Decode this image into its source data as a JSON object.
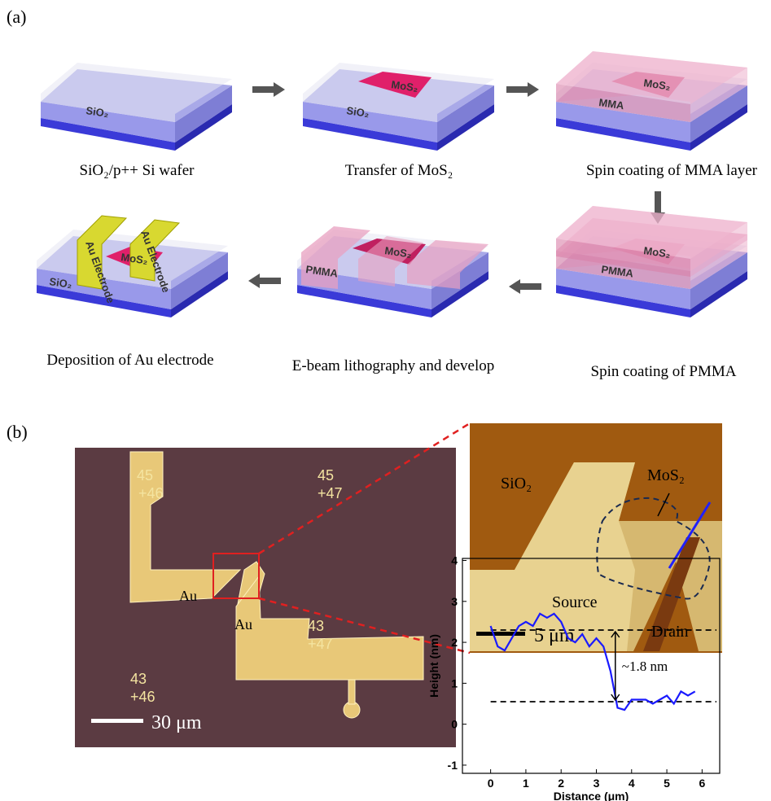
{
  "panel_a": {
    "label": "(a)",
    "steps": [
      {
        "caption": "SiO₂/p++ Si wafer",
        "labels": [
          "SiO₂"
        ]
      },
      {
        "caption": "Transfer of MoS₂",
        "labels": [
          "SiO₂",
          "MoS₂"
        ]
      },
      {
        "caption": "Spin coating of MMA layer",
        "labels": [
          "MMA",
          "MoS₂"
        ]
      },
      {
        "caption": "Spin coating of PMMA",
        "labels": [
          "PMMA",
          "MoS₂"
        ]
      },
      {
        "caption": "E-beam lithography and develop",
        "labels": [
          "PMMA",
          "MoS₂"
        ]
      },
      {
        "caption": "Deposition of Au electrode",
        "labels": [
          "SiO₂",
          "MoS₂",
          "Au Electrode",
          "Au Electrode"
        ]
      }
    ]
  },
  "panel_b": {
    "label": "(b)",
    "optical": {
      "labels": [
        "Au",
        "Au"
      ],
      "scale_bar": "30 μm",
      "markers": [
        "45",
        "+46",
        "45",
        "+47",
        "43",
        "+46",
        "43",
        "+47"
      ]
    },
    "afm": {
      "labels": [
        "SiO₂",
        "MoS₂",
        "Source",
        "Drain"
      ],
      "scale_bar": "5 μm"
    }
  },
  "chart_data": {
    "type": "line",
    "x_label": "Distance (μm)",
    "y_label": "Height (nm)",
    "x": [
      0,
      0.2,
      0.4,
      0.6,
      0.8,
      1.0,
      1.2,
      1.4,
      1.6,
      1.8,
      2.0,
      2.2,
      2.4,
      2.6,
      2.8,
      3.0,
      3.2,
      3.4,
      3.6,
      3.8,
      4.0,
      4.2,
      4.4,
      4.6,
      4.8,
      5.0,
      5.2,
      5.4,
      5.6,
      5.8
    ],
    "values": [
      2.4,
      1.9,
      1.8,
      2.1,
      2.4,
      2.5,
      2.4,
      2.7,
      2.6,
      2.7,
      2.5,
      2.1,
      2.0,
      2.2,
      1.9,
      2.1,
      1.9,
      1.3,
      0.4,
      0.35,
      0.6,
      0.6,
      0.6,
      0.5,
      0.6,
      0.7,
      0.5,
      0.8,
      0.7,
      0.8
    ],
    "color": "#1a1aff",
    "reference_lines": [
      2.3,
      0.55
    ],
    "annotation": "~1.8 nm",
    "xlim": [
      -0.8,
      6.5
    ],
    "ylim": [
      -1.2,
      4.05
    ],
    "xticks": [
      0,
      1,
      2,
      3,
      4,
      5,
      6
    ],
    "yticks": [
      -1,
      0,
      1,
      2,
      3,
      4
    ]
  }
}
